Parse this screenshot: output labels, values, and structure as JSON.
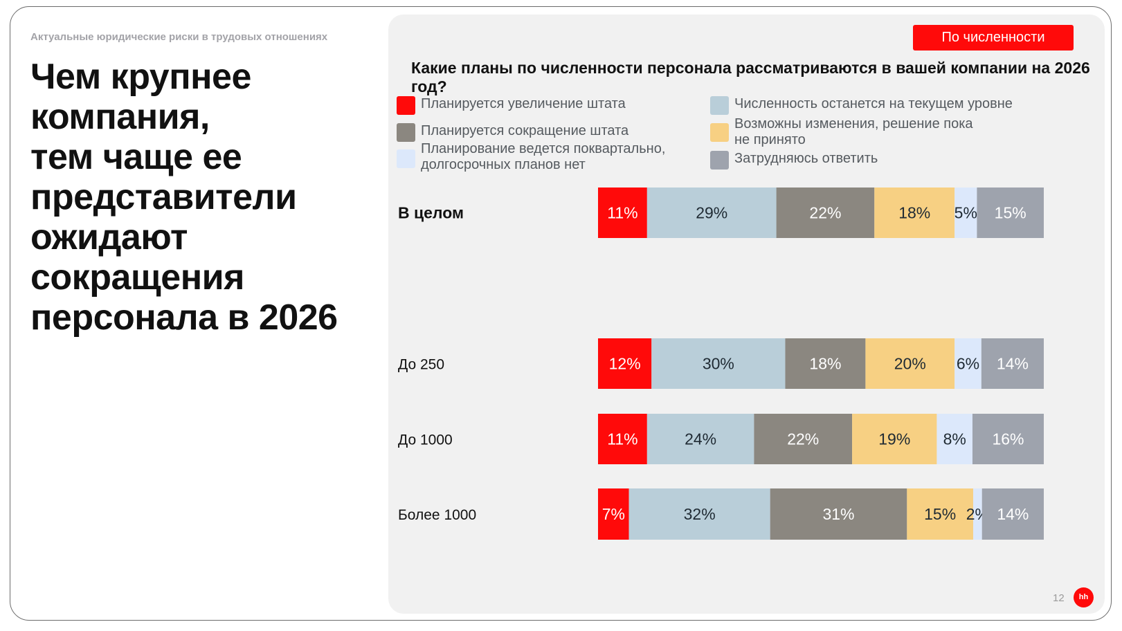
{
  "header": {
    "subtitle": "Актуальные юридические риски в трудовых отношениях",
    "headline": "Чем крупнее\nкомпания,\nтем чаще ее\nпредставители\nожидают\nсокращения\nперсонала в 2026"
  },
  "filter_tag": "По численности",
  "footer": {
    "page_number": "12",
    "logo_text": "hh"
  },
  "colors": {
    "increase": "#ff0a0a",
    "same": "#b9ced9",
    "decrease": "#8b8780",
    "undecided": "#f7d083",
    "quarterly": "#dce8fb",
    "unsure": "#9ea3ad"
  },
  "chart_data": {
    "type": "bar",
    "orientation": "horizontal-stacked-100",
    "title": "Какие планы по численности персонала рассматриваются в вашей компании на 2026 год?",
    "categories": [
      "В целом",
      "До 250",
      "До 1000",
      "Более 1000"
    ],
    "series": [
      {
        "key": "increase",
        "name": "Планируется увеличение штата",
        "values": [
          11,
          12,
          11,
          7
        ]
      },
      {
        "key": "same",
        "name": "Численность останется на текущем уровне",
        "values": [
          29,
          30,
          24,
          32
        ]
      },
      {
        "key": "decrease",
        "name": "Планируется сокращение штата",
        "values": [
          22,
          18,
          22,
          31
        ]
      },
      {
        "key": "undecided",
        "name": "Возможны изменения, решение пока\nне принято",
        "values": [
          18,
          20,
          19,
          15
        ]
      },
      {
        "key": "quarterly",
        "name": "Планирование ведется поквартально,\nдолгосрочных планов нет",
        "values": [
          5,
          6,
          8,
          2
        ]
      },
      {
        "key": "unsure",
        "name": "Затрудняюсь ответить",
        "values": [
          15,
          14,
          16,
          14
        ]
      }
    ],
    "unit": "%"
  }
}
